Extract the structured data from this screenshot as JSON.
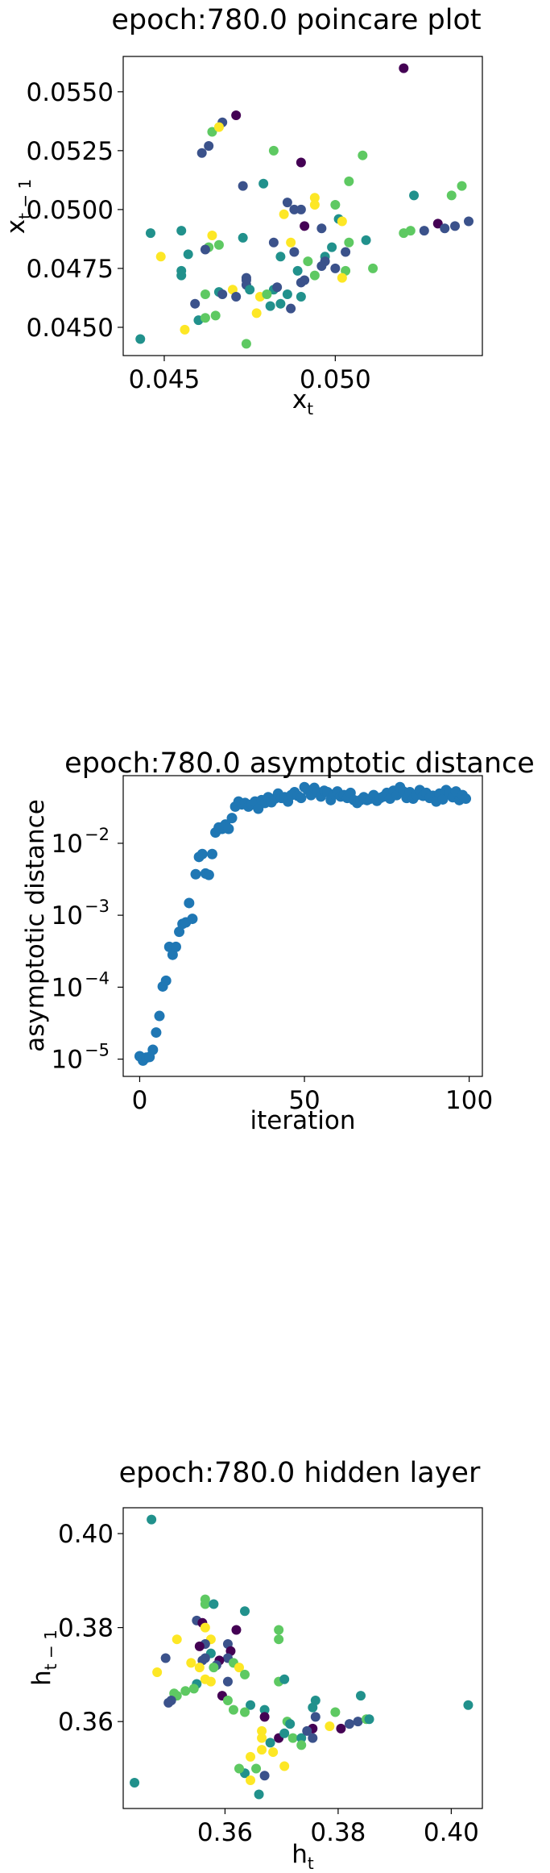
{
  "chart_data": [
    {
      "type": "scatter",
      "title": "epoch:780.0 poincare plot",
      "xlabel": "x",
      "xlabel_sub": "t",
      "ylabel": "x",
      "ylabel_sub": "t − 1",
      "xlim": [
        0.0438,
        0.0543
      ],
      "ylim": [
        0.0438,
        0.0565
      ],
      "xticks": [
        0.045,
        0.05
      ],
      "xtick_labels": [
        "0.045",
        "0.050"
      ],
      "yticks": [
        0.045,
        0.0475,
        0.05,
        0.0525,
        0.055
      ],
      "ytick_labels": [
        "0.0450",
        "0.0475",
        "0.0500",
        "0.0525",
        "0.0550"
      ],
      "grid": false,
      "colormap": [
        "#440154",
        "#3b528b",
        "#21918c",
        "#5ec962",
        "#fde725"
      ],
      "points": [
        [
          0.052,
          0.056,
          0
        ],
        [
          0.0471,
          0.054,
          0
        ],
        [
          0.0467,
          0.0537,
          1
        ],
        [
          0.0464,
          0.0533,
          3
        ],
        [
          0.0466,
          0.0535,
          4
        ],
        [
          0.0463,
          0.0527,
          1
        ],
        [
          0.0461,
          0.0524,
          1
        ],
        [
          0.0482,
          0.0525,
          3
        ],
        [
          0.0508,
          0.0523,
          3
        ],
        [
          0.049,
          0.052,
          0
        ],
        [
          0.0479,
          0.0511,
          2
        ],
        [
          0.0504,
          0.0512,
          3
        ],
        [
          0.0486,
          0.0503,
          1
        ],
        [
          0.0473,
          0.051,
          1
        ],
        [
          0.0488,
          0.05,
          1
        ],
        [
          0.0485,
          0.0498,
          4
        ],
        [
          0.0494,
          0.0505,
          4
        ],
        [
          0.0494,
          0.0502,
          4
        ],
        [
          0.049,
          0.05,
          1
        ],
        [
          0.05,
          0.0502,
          3
        ],
        [
          0.0491,
          0.0493,
          0
        ],
        [
          0.0501,
          0.0496,
          2
        ],
        [
          0.0509,
          0.0487,
          2
        ],
        [
          0.0523,
          0.0506,
          2
        ],
        [
          0.0534,
          0.0506,
          3
        ],
        [
          0.0537,
          0.051,
          3
        ],
        [
          0.052,
          0.049,
          3
        ],
        [
          0.0522,
          0.0491,
          3
        ],
        [
          0.0526,
          0.0491,
          1
        ],
        [
          0.053,
          0.0494,
          0
        ],
        [
          0.0532,
          0.0492,
          1
        ],
        [
          0.0535,
          0.0493,
          1
        ],
        [
          0.0539,
          0.0495,
          1
        ],
        [
          0.0502,
          0.0495,
          4
        ],
        [
          0.0496,
          0.0492,
          1
        ],
        [
          0.0446,
          0.049,
          2
        ],
        [
          0.0455,
          0.0491,
          2
        ],
        [
          0.0449,
          0.048,
          4
        ],
        [
          0.0457,
          0.0481,
          2
        ],
        [
          0.0464,
          0.0489,
          4
        ],
        [
          0.0463,
          0.0484,
          3
        ],
        [
          0.0466,
          0.0485,
          3
        ],
        [
          0.0462,
          0.0483,
          1
        ],
        [
          0.0473,
          0.0488,
          2
        ],
        [
          0.0482,
          0.0486,
          1
        ],
        [
          0.0487,
          0.0486,
          4
        ],
        [
          0.0484,
          0.048,
          2
        ],
        [
          0.0488,
          0.0482,
          1
        ],
        [
          0.0492,
          0.0478,
          3
        ],
        [
          0.0497,
          0.048,
          2
        ],
        [
          0.0497,
          0.0478,
          1
        ],
        [
          0.0503,
          0.0482,
          1
        ],
        [
          0.0499,
          0.0484,
          2
        ],
        [
          0.0504,
          0.0486,
          3
        ],
        [
          0.0511,
          0.0475,
          3
        ],
        [
          0.0455,
          0.0474,
          2
        ],
        [
          0.0455,
          0.0472,
          2
        ],
        [
          0.0462,
          0.0464,
          3
        ],
        [
          0.0466,
          0.0465,
          2
        ],
        [
          0.047,
          0.0466,
          4
        ],
        [
          0.0467,
          0.0464,
          1
        ],
        [
          0.0471,
          0.0463,
          1
        ],
        [
          0.0474,
          0.0468,
          1
        ],
        [
          0.0475,
          0.0466,
          2
        ],
        [
          0.0474,
          0.0471,
          1
        ],
        [
          0.0474,
          0.047,
          1
        ],
        [
          0.0478,
          0.0463,
          4
        ],
        [
          0.0482,
          0.0466,
          2
        ],
        [
          0.048,
          0.0464,
          3
        ],
        [
          0.0483,
          0.0467,
          1
        ],
        [
          0.0486,
          0.0464,
          2
        ],
        [
          0.049,
          0.0469,
          1
        ],
        [
          0.0491,
          0.047,
          1
        ],
        [
          0.0489,
          0.0474,
          2
        ],
        [
          0.0494,
          0.0472,
          3
        ],
        [
          0.0496,
          0.0476,
          1
        ],
        [
          0.05,
          0.0475,
          1
        ],
        [
          0.0503,
          0.0474,
          3
        ],
        [
          0.0502,
          0.0471,
          4
        ],
        [
          0.0484,
          0.046,
          2
        ],
        [
          0.0487,
          0.0458,
          1
        ],
        [
          0.049,
          0.0463,
          2
        ],
        [
          0.0459,
          0.046,
          1
        ],
        [
          0.046,
          0.0453,
          2
        ],
        [
          0.0462,
          0.0454,
          3
        ],
        [
          0.0465,
          0.0455,
          3
        ],
        [
          0.0477,
          0.0456,
          4
        ],
        [
          0.0481,
          0.0459,
          2
        ],
        [
          0.0443,
          0.0445,
          2
        ],
        [
          0.0456,
          0.0449,
          4
        ],
        [
          0.0474,
          0.0443,
          3
        ]
      ]
    },
    {
      "type": "scatter",
      "title": "epoch:780.0 asymptotic distance",
      "xlabel": "iteration",
      "ylabel": "asymptotic distance",
      "xlim": [
        -5,
        104
      ],
      "ylim_log10": [
        -5.24,
        -1.06
      ],
      "yscale": "log",
      "xticks": [
        0,
        50,
        100
      ],
      "xtick_labels": [
        "0",
        "50",
        "100"
      ],
      "yticks_log10": [
        -5,
        -4,
        -3,
        -2
      ],
      "ytick_labels": [
        "10",
        "10",
        "10",
        "10"
      ],
      "ytick_exponents": [
        "−5",
        "−4",
        "−3",
        "−2"
      ],
      "color": "#1f77b4",
      "grid": false,
      "x": [
        0,
        1,
        2,
        3,
        4,
        5,
        6,
        7,
        8,
        9,
        10,
        11,
        12,
        13,
        14,
        15,
        16,
        17,
        18,
        19,
        20,
        21,
        22,
        23,
        24,
        25,
        26,
        27,
        28,
        29,
        30,
        31,
        32,
        33,
        34,
        35,
        36,
        37,
        38,
        39,
        40,
        41,
        42,
        43,
        44,
        45,
        46,
        47,
        48,
        49,
        50,
        51,
        52,
        53,
        54,
        55,
        56,
        57,
        58,
        59,
        60,
        61,
        62,
        63,
        64,
        65,
        66,
        67,
        68,
        69,
        70,
        71,
        72,
        73,
        74,
        75,
        76,
        77,
        78,
        79,
        80,
        81,
        82,
        83,
        84,
        85,
        86,
        87,
        88,
        89,
        90,
        91,
        92,
        93,
        94,
        95,
        96,
        97,
        98,
        99
      ],
      "y_log10": [
        -4.96,
        -5.02,
        -4.98,
        -4.97,
        -4.87,
        -4.63,
        -4.4,
        -3.99,
        -3.91,
        -3.44,
        -3.55,
        -3.44,
        -3.23,
        -3.12,
        -3.1,
        -2.83,
        -3.05,
        -2.43,
        -2.19,
        -2.15,
        -2.42,
        -2.44,
        -2.15,
        -1.85,
        -1.78,
        -1.8,
        -1.74,
        -1.8,
        -1.65,
        -1.49,
        -1.42,
        -1.46,
        -1.44,
        -1.49,
        -1.46,
        -1.42,
        -1.52,
        -1.4,
        -1.44,
        -1.36,
        -1.43,
        -1.38,
        -1.31,
        -1.37,
        -1.36,
        -1.42,
        -1.33,
        -1.29,
        -1.34,
        -1.37,
        -1.22,
        -1.26,
        -1.33,
        -1.23,
        -1.29,
        -1.35,
        -1.27,
        -1.29,
        -1.4,
        -1.32,
        -1.28,
        -1.35,
        -1.33,
        -1.37,
        -1.3,
        -1.4,
        -1.44,
        -1.4,
        -1.36,
        -1.4,
        -1.38,
        -1.33,
        -1.41,
        -1.37,
        -1.35,
        -1.3,
        -1.38,
        -1.27,
        -1.33,
        -1.22,
        -1.28,
        -1.37,
        -1.29,
        -1.38,
        -1.33,
        -1.26,
        -1.34,
        -1.3,
        -1.37,
        -1.34,
        -1.42,
        -1.31,
        -1.39,
        -1.26,
        -1.3,
        -1.36,
        -1.28,
        -1.4,
        -1.33,
        -1.38
      ]
    },
    {
      "type": "scatter",
      "title": "epoch:780.0 hidden layer",
      "xlabel": "h",
      "xlabel_sub": "t",
      "ylabel": "h",
      "ylabel_sub": "t − 1",
      "xlim": [
        0.342,
        0.4055
      ],
      "ylim": [
        0.3415,
        0.4055
      ],
      "xticks": [
        0.36,
        0.38,
        0.4
      ],
      "xtick_labels": [
        "0.36",
        "0.38",
        "0.40"
      ],
      "yticks": [
        0.36,
        0.38,
        0.4
      ],
      "ytick_labels": [
        "0.36",
        "0.38",
        "0.40"
      ],
      "grid": false,
      "colormap": [
        "#440154",
        "#3b528b",
        "#21918c",
        "#5ec962",
        "#fde725"
      ],
      "points": [
        [
          0.347,
          0.403,
          2
        ],
        [
          0.344,
          0.347,
          2
        ],
        [
          0.403,
          0.3635,
          2
        ],
        [
          0.3565,
          0.386,
          3
        ],
        [
          0.3565,
          0.385,
          3
        ],
        [
          0.358,
          0.385,
          2
        ],
        [
          0.3635,
          0.3835,
          2
        ],
        [
          0.355,
          0.3815,
          1
        ],
        [
          0.356,
          0.381,
          0
        ],
        [
          0.3565,
          0.38,
          4
        ],
        [
          0.362,
          0.3795,
          0
        ],
        [
          0.3695,
          0.3795,
          3
        ],
        [
          0.3695,
          0.3775,
          3
        ],
        [
          0.3575,
          0.3775,
          4
        ],
        [
          0.3565,
          0.3765,
          1
        ],
        [
          0.3555,
          0.376,
          0
        ],
        [
          0.3605,
          0.3765,
          1
        ],
        [
          0.3575,
          0.3745,
          2
        ],
        [
          0.361,
          0.375,
          0
        ],
        [
          0.3605,
          0.3735,
          1
        ],
        [
          0.3565,
          0.3735,
          1
        ],
        [
          0.356,
          0.373,
          1
        ],
        [
          0.359,
          0.373,
          0
        ],
        [
          0.3585,
          0.372,
          1
        ],
        [
          0.3615,
          0.3725,
          3
        ],
        [
          0.358,
          0.3715,
          3
        ],
        [
          0.3555,
          0.3715,
          4
        ],
        [
          0.354,
          0.3725,
          4
        ],
        [
          0.3625,
          0.3715,
          4
        ],
        [
          0.3635,
          0.37,
          3
        ],
        [
          0.3515,
          0.3775,
          4
        ],
        [
          0.3495,
          0.3735,
          1
        ],
        [
          0.348,
          0.3705,
          4
        ],
        [
          0.3565,
          0.369,
          4
        ],
        [
          0.3575,
          0.3685,
          4
        ],
        [
          0.355,
          0.368,
          2
        ],
        [
          0.3605,
          0.3685,
          1
        ],
        [
          0.3695,
          0.3685,
          3
        ],
        [
          0.3705,
          0.369,
          2
        ],
        [
          0.3545,
          0.367,
          3
        ],
        [
          0.353,
          0.3665,
          3
        ],
        [
          0.351,
          0.366,
          3
        ],
        [
          0.3515,
          0.3655,
          3
        ],
        [
          0.3505,
          0.3645,
          1
        ],
        [
          0.35,
          0.364,
          1
        ],
        [
          0.3595,
          0.3655,
          0
        ],
        [
          0.3605,
          0.3645,
          3
        ],
        [
          0.3645,
          0.3635,
          2
        ],
        [
          0.3635,
          0.362,
          3
        ],
        [
          0.3615,
          0.3625,
          3
        ],
        [
          0.376,
          0.3645,
          2
        ],
        [
          0.3755,
          0.363,
          2
        ],
        [
          0.3795,
          0.362,
          3
        ],
        [
          0.384,
          0.3655,
          2
        ],
        [
          0.376,
          0.361,
          1
        ],
        [
          0.367,
          0.3625,
          2
        ],
        [
          0.367,
          0.361,
          0
        ],
        [
          0.371,
          0.36,
          3
        ],
        [
          0.3715,
          0.3595,
          2
        ],
        [
          0.3755,
          0.3585,
          0
        ],
        [
          0.3785,
          0.359,
          4
        ],
        [
          0.3805,
          0.3585,
          0
        ],
        [
          0.382,
          0.3595,
          1
        ],
        [
          0.3835,
          0.36,
          1
        ],
        [
          0.385,
          0.3605,
          3
        ],
        [
          0.3855,
          0.3605,
          2
        ],
        [
          0.3665,
          0.358,
          4
        ],
        [
          0.3665,
          0.3565,
          4
        ],
        [
          0.3695,
          0.3565,
          0
        ],
        [
          0.3705,
          0.3575,
          2
        ],
        [
          0.372,
          0.3565,
          3
        ],
        [
          0.3735,
          0.3565,
          2
        ],
        [
          0.3745,
          0.358,
          1
        ],
        [
          0.3755,
          0.3565,
          1
        ],
        [
          0.3735,
          0.355,
          3
        ],
        [
          0.368,
          0.3555,
          2
        ],
        [
          0.3665,
          0.354,
          4
        ],
        [
          0.3685,
          0.3535,
          4
        ],
        [
          0.3645,
          0.3525,
          4
        ],
        [
          0.3655,
          0.35,
          3
        ],
        [
          0.3635,
          0.349,
          2
        ],
        [
          0.3625,
          0.35,
          3
        ],
        [
          0.367,
          0.3485,
          1
        ],
        [
          0.3645,
          0.3475,
          4
        ],
        [
          0.366,
          0.3445,
          2
        ],
        [
          0.3705,
          0.3505,
          4
        ]
      ]
    }
  ]
}
